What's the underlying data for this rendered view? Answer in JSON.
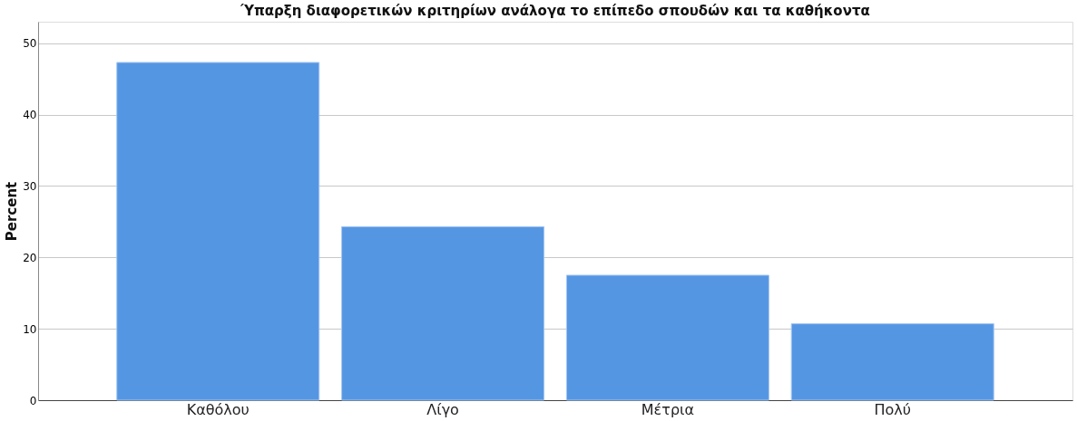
{
  "chart_data": {
    "type": "bar",
    "title": "Ύπαρξη διαφορετικών κριτηρίων ανάλογα το επίπεδο σπουδών και τα καθήκοντα",
    "ylabel": "Percent",
    "categories": [
      "Καθόλου",
      "Λίγο",
      "Μέτρια",
      "Πολύ"
    ],
    "values": [
      47.3,
      24.3,
      17.5,
      10.7
    ],
    "color": "#5596e3",
    "ylim": [
      0,
      53
    ],
    "yticks": [
      0,
      10,
      20,
      30,
      40,
      50
    ],
    "grid": "y"
  }
}
